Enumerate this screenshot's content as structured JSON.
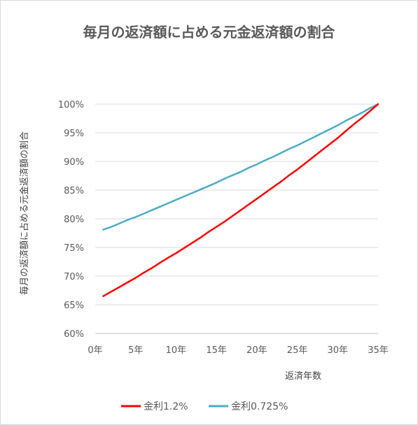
{
  "chart_data": {
    "type": "line",
    "title": "毎月の返済額に占める元金返済額の割合",
    "xlabel": "返済年数",
    "ylabel": "毎月の返済額に占める元金返済額の割合",
    "xlim": [
      0,
      35
    ],
    "ylim": [
      0.6,
      1.0
    ],
    "x_ticks": [
      "0年",
      "5年",
      "10年",
      "15年",
      "20年",
      "25年",
      "30年",
      "35年"
    ],
    "y_ticks": [
      "60%",
      "65%",
      "70%",
      "75%",
      "80%",
      "85%",
      "90%",
      "95%",
      "100%"
    ],
    "grid": true,
    "legend_position": "bottom",
    "x": [
      1,
      2,
      3,
      4,
      5,
      6,
      7,
      8,
      9,
      10,
      11,
      12,
      13,
      14,
      15,
      16,
      17,
      18,
      19,
      20,
      21,
      22,
      23,
      24,
      25,
      26,
      27,
      28,
      29,
      30,
      31,
      32,
      33,
      34,
      35
    ],
    "series": [
      {
        "name": "金利1.2%",
        "color": "#ff0000",
        "values": [
          0.665,
          0.673,
          0.681,
          0.689,
          0.697,
          0.706,
          0.714,
          0.723,
          0.732,
          0.74,
          0.749,
          0.758,
          0.767,
          0.777,
          0.786,
          0.795,
          0.805,
          0.815,
          0.825,
          0.835,
          0.845,
          0.855,
          0.865,
          0.876,
          0.886,
          0.897,
          0.908,
          0.919,
          0.93,
          0.941,
          0.953,
          0.965,
          0.976,
          0.988,
          1.0
        ]
      },
      {
        "name": "金利0.725%",
        "color": "#4bacc6",
        "values": [
          0.781,
          0.786,
          0.792,
          0.798,
          0.803,
          0.809,
          0.815,
          0.821,
          0.827,
          0.833,
          0.839,
          0.845,
          0.851,
          0.857,
          0.863,
          0.87,
          0.876,
          0.882,
          0.889,
          0.895,
          0.902,
          0.908,
          0.915,
          0.922,
          0.928,
          0.935,
          0.942,
          0.949,
          0.956,
          0.963,
          0.971,
          0.978,
          0.985,
          0.993,
          1.0
        ]
      }
    ]
  }
}
